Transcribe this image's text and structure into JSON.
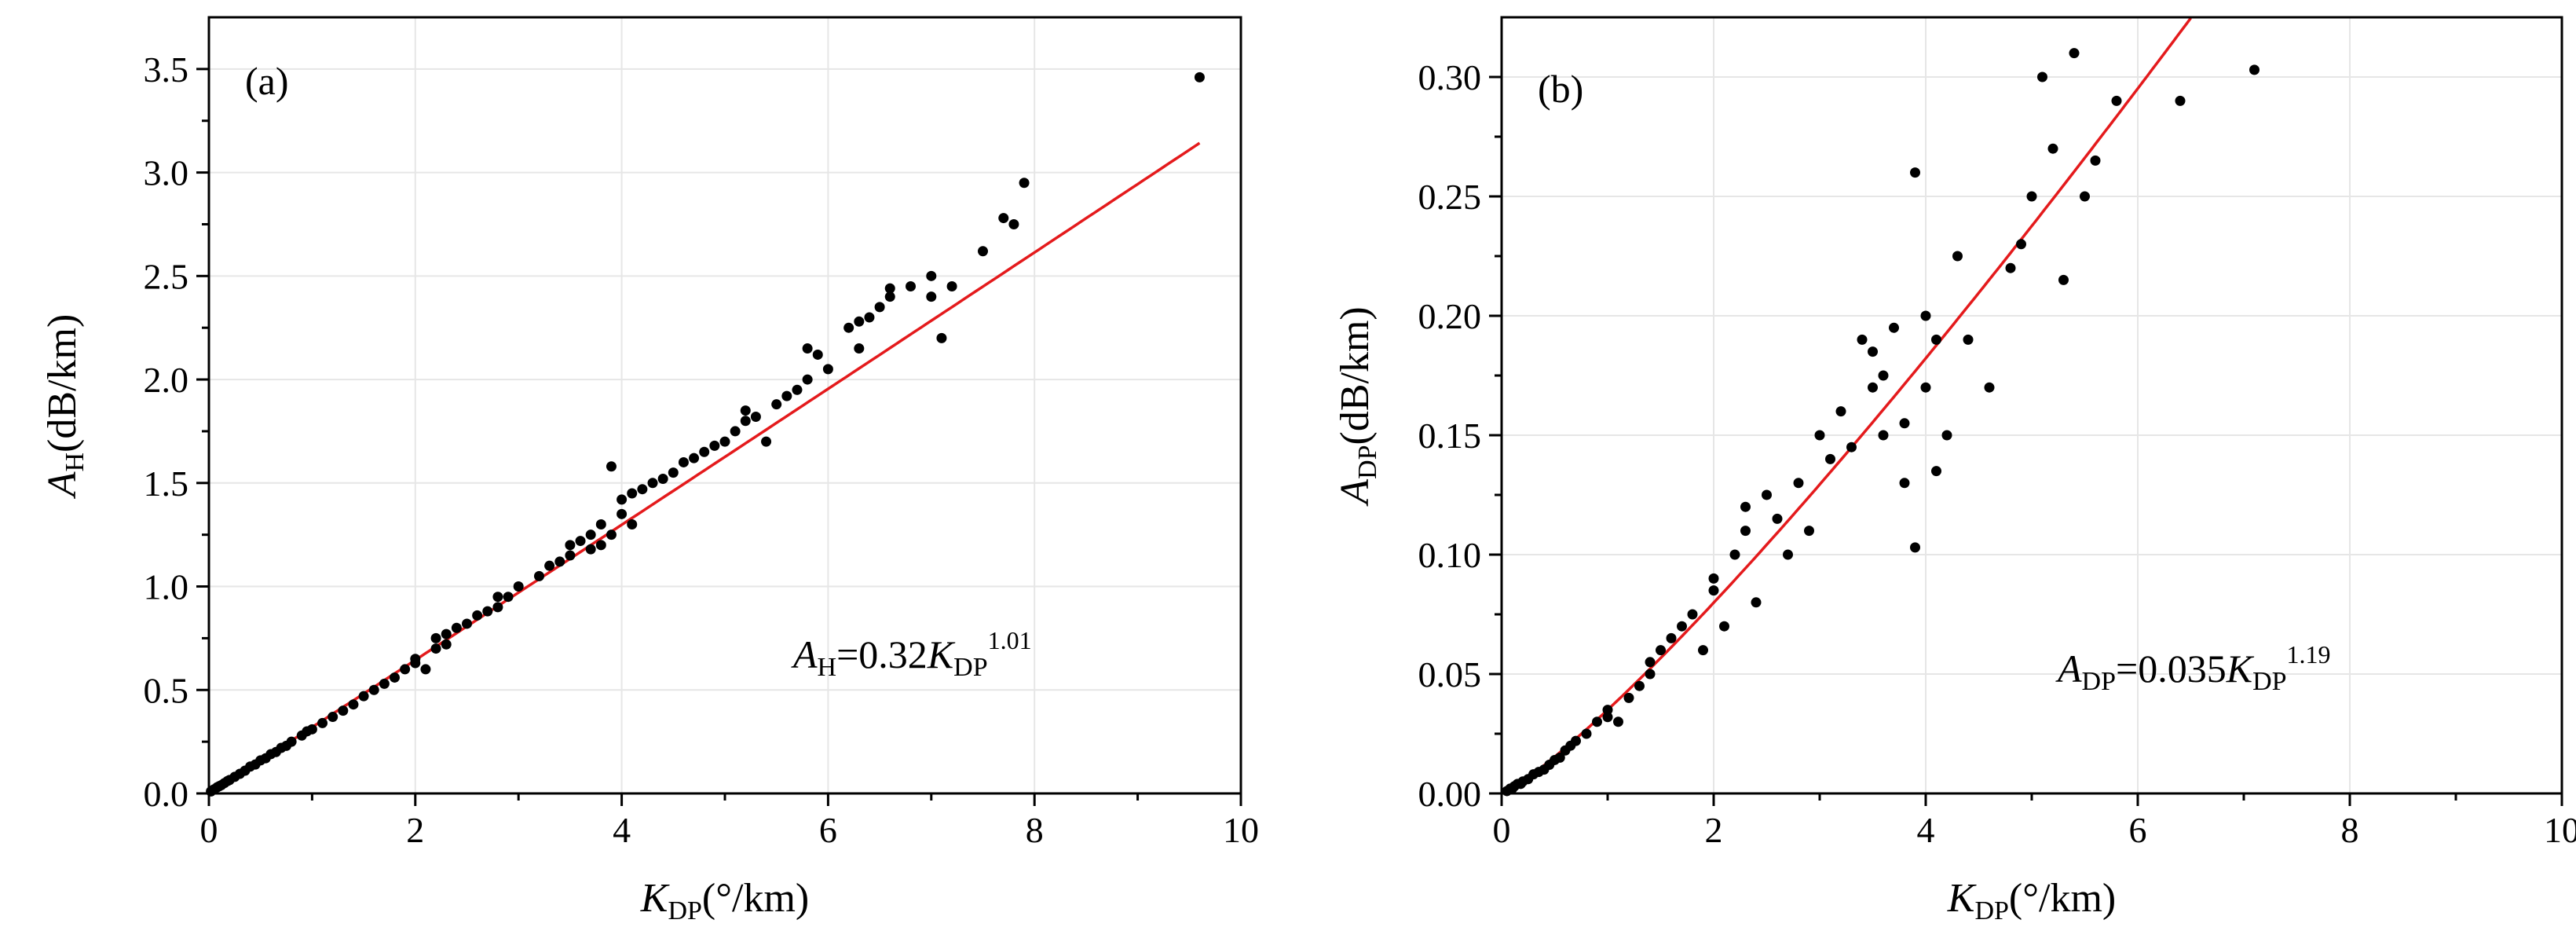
{
  "colors": {
    "points": "#000000",
    "fit": "#e41a1c",
    "grid": "#e6e6e6",
    "axis": "#000000"
  },
  "chart_data": [
    {
      "type": "scatter",
      "panel_label": "(a)",
      "xlabel": {
        "main": "K",
        "sub": "DP",
        "rest": "(°/km)"
      },
      "ylabel": {
        "main": "A",
        "sub": "H",
        "rest": "(dB/km)"
      },
      "xlim": [
        0,
        10
      ],
      "ylim": [
        0,
        3.75
      ],
      "xticks": [
        0,
        2,
        4,
        6,
        8,
        10
      ],
      "xtick_labels": [
        "0",
        "2",
        "4",
        "6",
        "8",
        "10"
      ],
      "yticks": [
        0,
        0.5,
        1.0,
        1.5,
        2.0,
        2.5,
        3.0,
        3.5
      ],
      "ytick_labels": [
        "0.0",
        "0.5",
        "1.0",
        "1.5",
        "2.0",
        "2.5",
        "3.0",
        "3.5"
      ],
      "grid": true,
      "equation": {
        "lhs_main": "A",
        "lhs_sub": "H",
        "mid": "=0.32",
        "var_main": "K",
        "var_sub": "DP",
        "exp": "1.01"
      },
      "fit": {
        "a": 0.32,
        "b": 1.01,
        "x_max": 9.6
      },
      "points": [
        [
          0.02,
          0.01
        ],
        [
          0.05,
          0.02
        ],
        [
          0.08,
          0.03
        ],
        [
          0.1,
          0.035
        ],
        [
          0.12,
          0.04
        ],
        [
          0.15,
          0.05
        ],
        [
          0.18,
          0.06
        ],
        [
          0.2,
          0.065
        ],
        [
          0.25,
          0.08
        ],
        [
          0.3,
          0.095
        ],
        [
          0.35,
          0.11
        ],
        [
          0.4,
          0.13
        ],
        [
          0.45,
          0.14
        ],
        [
          0.5,
          0.16
        ],
        [
          0.55,
          0.17
        ],
        [
          0.6,
          0.19
        ],
        [
          0.65,
          0.2
        ],
        [
          0.7,
          0.22
        ],
        [
          0.75,
          0.23
        ],
        [
          0.8,
          0.25
        ],
        [
          0.9,
          0.28
        ],
        [
          0.95,
          0.3
        ],
        [
          1.0,
          0.31
        ],
        [
          1.1,
          0.34
        ],
        [
          1.2,
          0.37
        ],
        [
          1.3,
          0.4
        ],
        [
          1.4,
          0.43
        ],
        [
          1.5,
          0.47
        ],
        [
          1.6,
          0.5
        ],
        [
          1.7,
          0.53
        ],
        [
          1.8,
          0.56
        ],
        [
          1.9,
          0.6
        ],
        [
          2.0,
          0.63
        ],
        [
          2.0,
          0.65
        ],
        [
          2.1,
          0.6
        ],
        [
          2.2,
          0.7
        ],
        [
          2.2,
          0.75
        ],
        [
          2.3,
          0.72
        ],
        [
          2.3,
          0.77
        ],
        [
          2.4,
          0.8
        ],
        [
          2.5,
          0.82
        ],
        [
          2.6,
          0.86
        ],
        [
          2.7,
          0.88
        ],
        [
          2.8,
          0.9
        ],
        [
          2.8,
          0.95
        ],
        [
          2.9,
          0.95
        ],
        [
          3.0,
          1.0
        ],
        [
          3.2,
          1.05
        ],
        [
          3.3,
          1.1
        ],
        [
          3.4,
          1.12
        ],
        [
          3.5,
          1.15
        ],
        [
          3.5,
          1.2
        ],
        [
          3.6,
          1.22
        ],
        [
          3.7,
          1.25
        ],
        [
          3.7,
          1.18
        ],
        [
          3.8,
          1.3
        ],
        [
          3.8,
          1.2
        ],
        [
          3.9,
          1.25
        ],
        [
          3.9,
          1.58
        ],
        [
          4.0,
          1.35
        ],
        [
          4.0,
          1.42
        ],
        [
          4.1,
          1.3
        ],
        [
          4.1,
          1.45
        ],
        [
          4.2,
          1.47
        ],
        [
          4.3,
          1.5
        ],
        [
          4.4,
          1.52
        ],
        [
          4.5,
          1.55
        ],
        [
          4.6,
          1.6
        ],
        [
          4.7,
          1.62
        ],
        [
          4.8,
          1.65
        ],
        [
          4.9,
          1.68
        ],
        [
          5.0,
          1.7
        ],
        [
          5.1,
          1.75
        ],
        [
          5.2,
          1.8
        ],
        [
          5.2,
          1.85
        ],
        [
          5.3,
          1.82
        ],
        [
          5.4,
          1.7
        ],
        [
          5.5,
          1.88
        ],
        [
          5.6,
          1.92
        ],
        [
          5.7,
          1.95
        ],
        [
          5.8,
          2.0
        ],
        [
          5.8,
          2.15
        ],
        [
          5.9,
          2.12
        ],
        [
          6.0,
          2.05
        ],
        [
          6.2,
          2.25
        ],
        [
          6.3,
          2.15
        ],
        [
          6.3,
          2.28
        ],
        [
          6.4,
          2.3
        ],
        [
          6.5,
          2.35
        ],
        [
          6.6,
          2.4
        ],
        [
          6.6,
          2.44
        ],
        [
          6.8,
          2.45
        ],
        [
          7.0,
          2.4
        ],
        [
          7.0,
          2.5
        ],
        [
          7.1,
          2.2
        ],
        [
          7.2,
          2.45
        ],
        [
          7.5,
          2.62
        ],
        [
          7.7,
          2.78
        ],
        [
          7.8,
          2.75
        ],
        [
          7.9,
          2.95
        ],
        [
          9.6,
          3.46
        ]
      ]
    },
    {
      "type": "scatter",
      "panel_label": "(b)",
      "xlabel": {
        "main": "K",
        "sub": "DP",
        "rest": "(°/km)"
      },
      "ylabel": {
        "main": "A",
        "sub": "DP",
        "rest": "(dB/km)"
      },
      "xlim": [
        0,
        10
      ],
      "ylim": [
        0,
        0.325
      ],
      "xticks": [
        0,
        2,
        4,
        6,
        8,
        10
      ],
      "xtick_labels": [
        "0",
        "2",
        "4",
        "6",
        "8",
        "10"
      ],
      "yticks": [
        0,
        0.05,
        0.1,
        0.15,
        0.2,
        0.25,
        0.3
      ],
      "ytick_labels": [
        "0.00",
        "0.05",
        "0.10",
        "0.15",
        "0.20",
        "0.25",
        "0.30"
      ],
      "grid": true,
      "equation": {
        "lhs_main": "A",
        "lhs_sub": "DP",
        "mid": "=0.035",
        "var_main": "K",
        "var_sub": "DP",
        "exp": "1.19"
      },
      "fit": {
        "a": 0.035,
        "b": 1.19,
        "x_max": 6.5
      },
      "points": [
        [
          0.05,
          0.001
        ],
        [
          0.08,
          0.002
        ],
        [
          0.1,
          0.002
        ],
        [
          0.12,
          0.003
        ],
        [
          0.15,
          0.004
        ],
        [
          0.18,
          0.004
        ],
        [
          0.2,
          0.005
        ],
        [
          0.25,
          0.006
        ],
        [
          0.3,
          0.008
        ],
        [
          0.35,
          0.009
        ],
        [
          0.4,
          0.01
        ],
        [
          0.45,
          0.012
        ],
        [
          0.5,
          0.014
        ],
        [
          0.55,
          0.015
        ],
        [
          0.6,
          0.018
        ],
        [
          0.65,
          0.02
        ],
        [
          0.7,
          0.022
        ],
        [
          0.8,
          0.025
        ],
        [
          0.9,
          0.03
        ],
        [
          1.0,
          0.032
        ],
        [
          1.0,
          0.035
        ],
        [
          1.1,
          0.03
        ],
        [
          1.2,
          0.04
        ],
        [
          1.3,
          0.045
        ],
        [
          1.4,
          0.05
        ],
        [
          1.4,
          0.055
        ],
        [
          1.5,
          0.06
        ],
        [
          1.6,
          0.065
        ],
        [
          1.7,
          0.07
        ],
        [
          1.8,
          0.075
        ],
        [
          1.9,
          0.06
        ],
        [
          2.0,
          0.085
        ],
        [
          2.0,
          0.09
        ],
        [
          2.1,
          0.07
        ],
        [
          2.2,
          0.1
        ],
        [
          2.3,
          0.12
        ],
        [
          2.3,
          0.11
        ],
        [
          2.4,
          0.08
        ],
        [
          2.5,
          0.125
        ],
        [
          2.6,
          0.115
        ],
        [
          2.7,
          0.1
        ],
        [
          2.8,
          0.13
        ],
        [
          2.9,
          0.11
        ],
        [
          3.0,
          0.15
        ],
        [
          3.1,
          0.14
        ],
        [
          3.2,
          0.16
        ],
        [
          3.3,
          0.145
        ],
        [
          3.4,
          0.19
        ],
        [
          3.5,
          0.17
        ],
        [
          3.5,
          0.185
        ],
        [
          3.6,
          0.15
        ],
        [
          3.6,
          0.175
        ],
        [
          3.7,
          0.195
        ],
        [
          3.8,
          0.155
        ],
        [
          3.8,
          0.13
        ],
        [
          3.9,
          0.26
        ],
        [
          3.9,
          0.103
        ],
        [
          4.0,
          0.2
        ],
        [
          4.0,
          0.17
        ],
        [
          4.1,
          0.135
        ],
        [
          4.1,
          0.19
        ],
        [
          4.2,
          0.15
        ],
        [
          4.3,
          0.225
        ],
        [
          4.4,
          0.19
        ],
        [
          4.6,
          0.17
        ],
        [
          4.8,
          0.22
        ],
        [
          4.9,
          0.23
        ],
        [
          5.0,
          0.25
        ],
        [
          5.1,
          0.3
        ],
        [
          5.2,
          0.27
        ],
        [
          5.3,
          0.215
        ],
        [
          5.4,
          0.31
        ],
        [
          5.5,
          0.25
        ],
        [
          5.6,
          0.265
        ],
        [
          5.8,
          0.29
        ],
        [
          6.4,
          0.29
        ],
        [
          7.1,
          0.303
        ]
      ]
    }
  ]
}
